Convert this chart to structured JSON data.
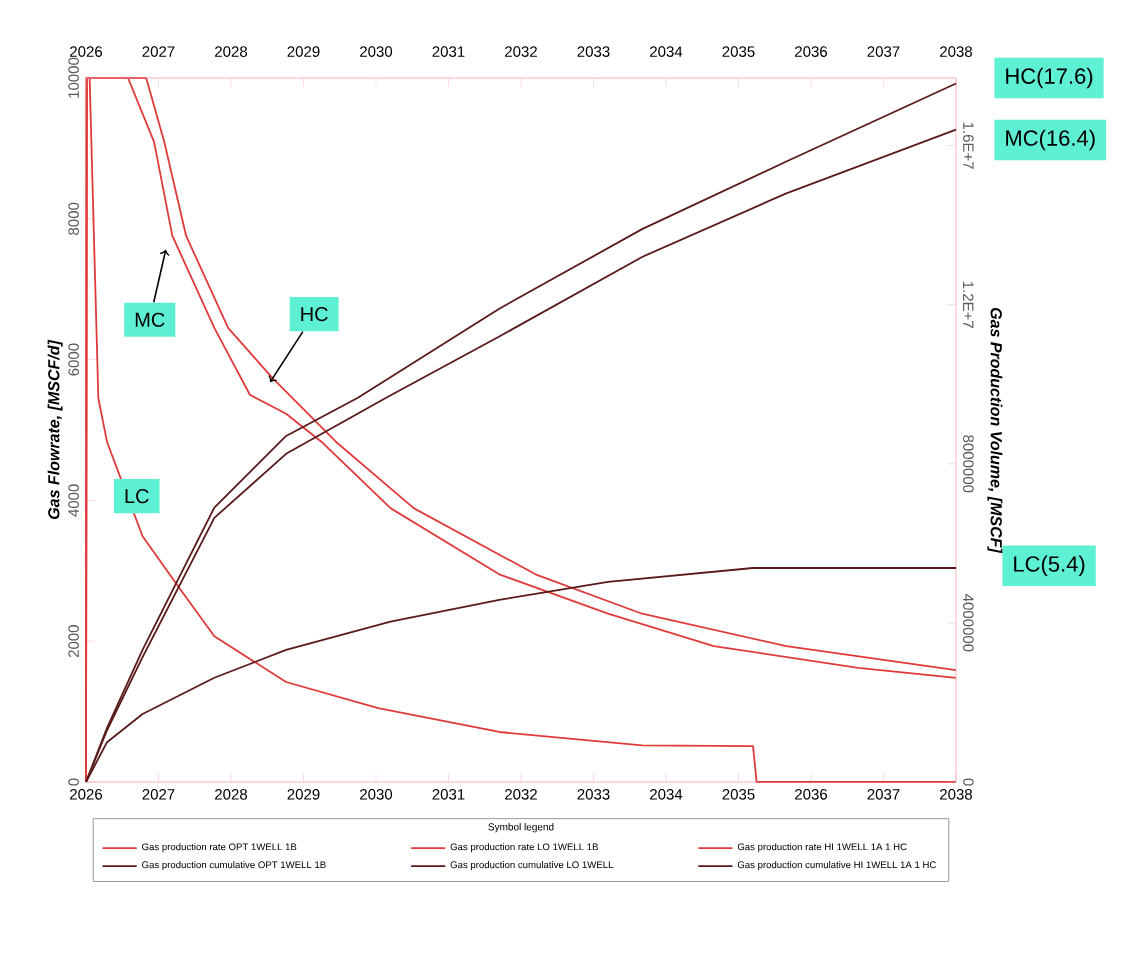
{
  "chart_data": {
    "type": "line",
    "ylabel": "Gas Flowrate, [MSCF/d]",
    "y2label": "Gas Production Volume, [MSCF]",
    "legend_title": "Symbol legend",
    "legend": "bottom",
    "xlim": [
      2026,
      2038
    ],
    "xticks": [
      2026,
      2027,
      2028,
      2029,
      2030,
      2031,
      2032,
      2033,
      2034,
      2035,
      2036,
      2037,
      2038
    ],
    "x2lim": [
      2026,
      2038
    ],
    "x2ticks": [
      2026,
      2027,
      2028,
      2029,
      2030,
      2031,
      2032,
      2033,
      2034,
      2035,
      2036,
      2037,
      2038
    ],
    "ylim": [
      0,
      10000
    ],
    "yticks": [
      0,
      2000,
      4000,
      6000,
      8000,
      10000
    ],
    "y2lim": [
      0,
      17700000
    ],
    "y2ticks": [
      0,
      4000000,
      8000000,
      {
        "value": 12000000,
        "label": "1.2E+7"
      },
      {
        "value": 16000000,
        "label": "1.6E+7"
      }
    ],
    "series": [
      {
        "name": "Gas production rate OPT  1WELL  1B",
        "color": "#e03a3a",
        "x": [
          2026.0,
          2026.01,
          2026.58,
          2026.94,
          2027.19,
          2027.77,
          2028.26,
          2028.76,
          2029.25,
          2030.2,
          2031.7,
          2033.2,
          2034.66,
          2036.65,
          2038
        ],
        "values": [
          0,
          10000,
          10000,
          9090,
          7760,
          6450,
          5500,
          5230,
          4830,
          3890,
          2950,
          2390,
          1930,
          1620,
          1480
        ]
      },
      {
        "name": "Gas production rate LO  1WELL  1B",
        "color": "#e03a3a",
        "x": [
          2026.0,
          2026.01,
          2026.05,
          2026.17,
          2026.29,
          2026.78,
          2027.27,
          2027.77,
          2028.76,
          2030.03,
          2031.7,
          2033.67,
          2035.2,
          2035.25,
          2038
        ],
        "values": [
          0,
          10000,
          10000,
          5450,
          4830,
          3490,
          2780,
          2070,
          1420,
          1050,
          710,
          520,
          510,
          0,
          0
        ]
      },
      {
        "name": "Gas production rate HI  1WELL  1A  1  HC",
        "color": "#e03a3a",
        "x": [
          2026.0,
          2026.01,
          2026.83,
          2027.08,
          2027.38,
          2027.96,
          2028.57,
          2029.45,
          2030.52,
          2032.2,
          2033.67,
          2035.66,
          2038
        ],
        "values": [
          0,
          10000,
          10000,
          9090,
          7760,
          6450,
          5740,
          4830,
          3890,
          2950,
          2390,
          1930,
          1590
        ]
      },
      {
        "name": "Gas production cumulative OPT  1WELL  1B",
        "color": "#5a1a1a",
        "axis": "y2",
        "x": [
          2026.0,
          2026.29,
          2026.78,
          2027.77,
          2028.76,
          2030.14,
          2031.7,
          2033.67,
          2035.66,
          2038
        ],
        "values": [
          0,
          1300000,
          3140000,
          6640000,
          8250000,
          9660000,
          11200000,
          13200000,
          14800000,
          16400000
        ]
      },
      {
        "name": "Gas production cumulative LO  1WELL",
        "color": "#5a1a1a",
        "axis": "y2",
        "x": [
          2026.0,
          2026.29,
          2026.78,
          2027.77,
          2028.76,
          2030.2,
          2031.7,
          2033.2,
          2035.2,
          2038
        ],
        "values": [
          0,
          1000000,
          1710000,
          2620000,
          3320000,
          4030000,
          4580000,
          5030000,
          5380000,
          5380000
        ]
      },
      {
        "name": "Gas production cumulative HI  1WELL  1A  1  HC",
        "color": "#5a1a1a",
        "axis": "y2",
        "x": [
          2026.0,
          2026.29,
          2026.78,
          2027.77,
          2028.76,
          2029.75,
          2031.7,
          2033.67,
          2035.66,
          2038
        ],
        "values": [
          0,
          1360000,
          3320000,
          6900000,
          8700000,
          9660000,
          11900000,
          13900000,
          15600000,
          17560000
        ]
      }
    ],
    "annotations": [
      {
        "text": "MC",
        "x": 2027.1,
        "y": 7560
      },
      {
        "text": "HC",
        "x": 2028.54,
        "y": 5680
      },
      {
        "text": "LC",
        "x": 2026.7,
        "y": 4060
      },
      {
        "text": "HC(17.6)",
        "x": 2038,
        "y": 10000
      },
      {
        "text": "MC(16.4)",
        "x": 2038,
        "y": 9120
      },
      {
        "text": "LC(5.4)",
        "x": 2038,
        "y": 3070
      }
    ]
  }
}
